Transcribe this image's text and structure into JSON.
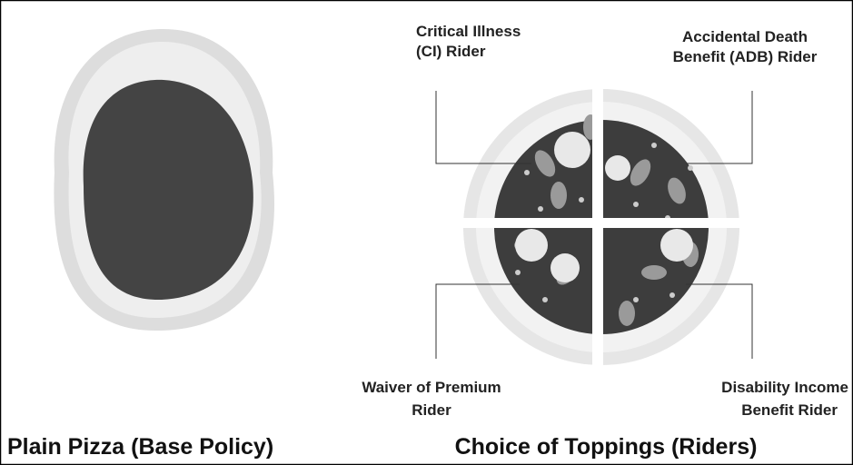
{
  "riders": [
    {
      "lines": [
        "Critical Illness",
        "(CI) Rider"
      ]
    },
    {
      "lines": [
        "Accidental Death",
        "Benefit (ADB) Rider"
      ]
    },
    {
      "lines": [
        "Waiver of Premium",
        "Rider"
      ]
    },
    {
      "lines": [
        "Disability Income",
        "Benefit Rider"
      ]
    }
  ],
  "captions": {
    "left": "Plain Pizza  (Base Policy)",
    "right": "Choice of Toppings (Riders)"
  }
}
